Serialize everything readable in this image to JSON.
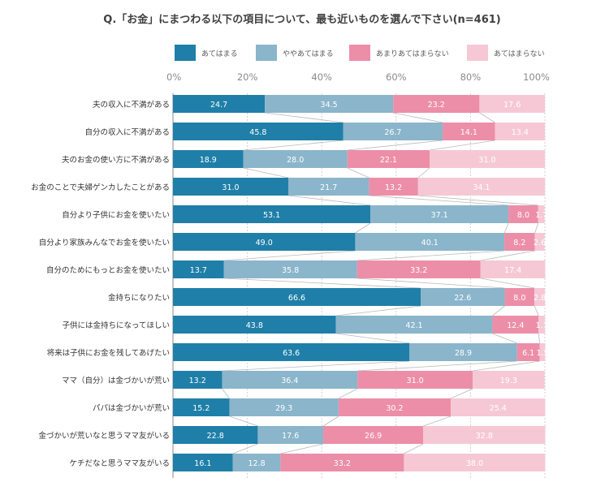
{
  "chart_data": {
    "type": "bar",
    "orientation": "horizontal",
    "stacked": true,
    "title": "Q.「お金」にまつわる以下の項目について、最も近いものを選んで下さい(n=461)",
    "xlim": [
      0,
      100
    ],
    "x_ticks": [
      "0%",
      "20%",
      "40%",
      "60%",
      "80%",
      "100%"
    ],
    "x_tick_values": [
      0,
      20,
      40,
      60,
      80,
      100
    ],
    "legend_position": "top",
    "categories": [
      "夫の収入に不満がある",
      "自分の収入に不満がある",
      "夫のお金の使い方に不満がある",
      "お金のことで夫婦ゲンカしたことがある",
      "自分より子供にお金を使いたい",
      "自分より家族みんなでお金を使いたい",
      "自分のためにもっとお金を使いたい",
      "金持ちになりたい",
      "子供には金持ちになってほしい",
      "将来は子供にお金を残してあげたい",
      "ママ（自分）は金づかいが荒い",
      "パパは金づかいが荒い",
      "金づかいが荒いなと思うママ友がいる",
      "ケチだなと思うママ友がいる"
    ],
    "series": [
      {
        "name": "あてはまる",
        "color": "#1f7fa8",
        "label_color": "#ffffff",
        "values": [
          24.7,
          45.8,
          18.9,
          31.0,
          53.1,
          49.0,
          13.7,
          66.6,
          43.8,
          63.6,
          13.2,
          15.2,
          22.8,
          16.1
        ]
      },
      {
        "name": "ややあてはまる",
        "color": "#8ab5cb",
        "label_color": "#ffffff",
        "values": [
          34.5,
          26.7,
          28.0,
          21.7,
          37.1,
          40.1,
          35.8,
          22.6,
          42.1,
          28.9,
          36.4,
          29.3,
          17.6,
          12.8
        ]
      },
      {
        "name": "あまりあてはまらない",
        "color": "#ec8ea8",
        "label_color": "#ffffff",
        "values": [
          23.2,
          14.1,
          22.1,
          13.2,
          8.0,
          8.2,
          33.2,
          8.0,
          12.4,
          6.1,
          31.0,
          30.2,
          26.9,
          33.2
        ]
      },
      {
        "name": "あてはまらない",
        "color": "#f6c8d6",
        "label_color": "#ffffff",
        "values": [
          17.6,
          13.4,
          31.0,
          34.1,
          1.7,
          2.6,
          17.4,
          2.8,
          1.7,
          1.5,
          19.3,
          25.4,
          32.8,
          38.0
        ]
      }
    ],
    "value_labels_text": [
      [
        "24.7",
        "45.8",
        "18.9",
        "31.0",
        "53.1",
        "49.0",
        "13.7",
        "66.6",
        "43.8",
        "63.6",
        "13.2",
        "15.2",
        "22.8",
        "16.1"
      ],
      [
        "34.5",
        "26.7",
        "28.0",
        "21.7",
        "37.1",
        "40.1",
        "35.8",
        "22.6",
        "42.1",
        "28.9",
        "36.4",
        "29.3",
        "17.6",
        "12.8"
      ],
      [
        "23.2",
        "14.1",
        "22.1",
        "13.2",
        "8.0",
        "8.2",
        "33.2",
        "8.0",
        "12.4",
        "6.1",
        "31.0",
        "30.2",
        "26.9",
        "33.2"
      ],
      [
        "17.6",
        "13.4",
        "31.0",
        "34.1",
        "1.7",
        "2.6",
        "17.4",
        "2.8",
        "1.7",
        "1.5",
        "19.3",
        "25.4",
        "32.8",
        "38.0"
      ]
    ]
  }
}
